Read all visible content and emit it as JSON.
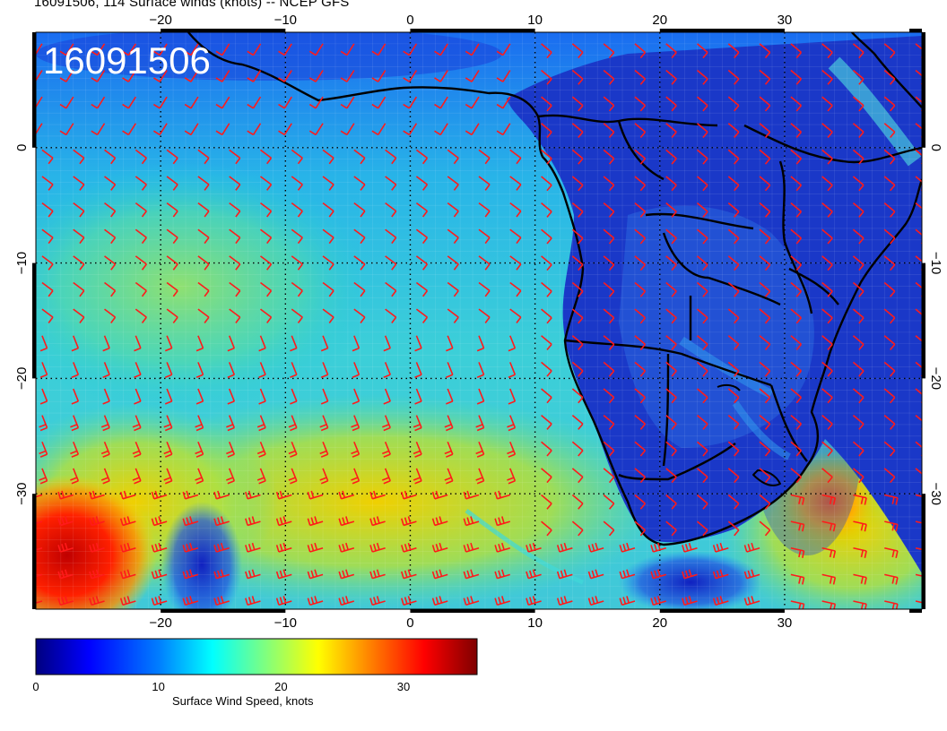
{
  "page": {
    "title": "16091506, 114 Surface winds (knots) -- NCEP GFS",
    "stamp": "16091506"
  },
  "map": {
    "projection": "equirectangular",
    "lon_range": [
      -30,
      41
    ],
    "lat_range": [
      -40,
      10
    ],
    "grid": true,
    "gridlines_dotted": true,
    "lon_ticks": [
      {
        "value": -20,
        "label": "−20"
      },
      {
        "value": -10,
        "label": "−10"
      },
      {
        "value": 0,
        "label": "0"
      },
      {
        "value": 10,
        "label": "10"
      },
      {
        "value": 20,
        "label": "20"
      },
      {
        "value": 30,
        "label": "30"
      }
    ],
    "lat_ticks": [
      {
        "value": 0,
        "label": "0"
      },
      {
        "value": -10,
        "label": "−10"
      },
      {
        "value": -20,
        "label": "−20"
      },
      {
        "value": -30,
        "label": "−30"
      }
    ],
    "wind_barb_color": "#ff1a1a",
    "coastline_color": "#000000"
  },
  "colorbar": {
    "label": "Surface Wind Speed, knots",
    "min": 0,
    "max": 36,
    "ticks": [
      {
        "value": 0,
        "label": "0"
      },
      {
        "value": 10,
        "label": "10"
      },
      {
        "value": 20,
        "label": "20"
      },
      {
        "value": 30,
        "label": "30"
      }
    ],
    "colormap": [
      "#00007f",
      "#0000ff",
      "#007fff",
      "#00ffff",
      "#7fff7f",
      "#ffff00",
      "#ff7f00",
      "#ff0000",
      "#7f0000"
    ]
  }
}
